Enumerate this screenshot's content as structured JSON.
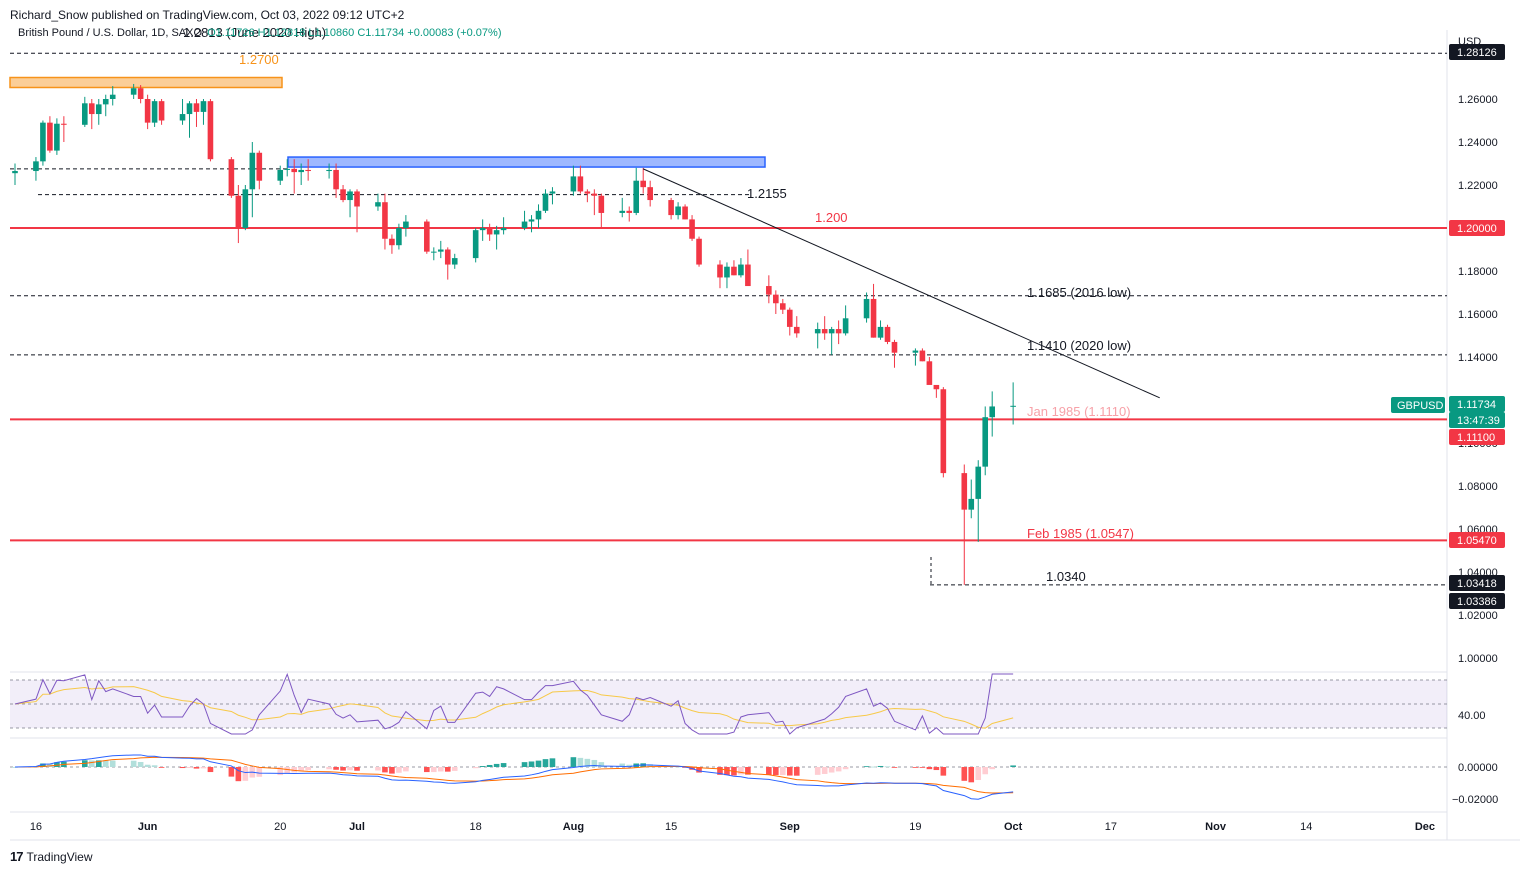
{
  "header": {
    "publisher": "Richard_Snow published on TradingView.com, Oct 03, 2022 09:12 UTC+2",
    "symbol_line": "British Pound / U.S. Dollar, 1D, SAXO",
    "quote": "O1.11726 H1.12818 L1.10860 C1.11734 +0.00083 (+0.07%)"
  },
  "branding": {
    "logo_text": "TradingView",
    "logo_mark": "17"
  },
  "chart_data": {
    "type": "candlestick",
    "currency_label": "USD",
    "y_ticks": [
      "1.26000",
      "1.24000",
      "1.22000",
      "1.20000",
      "1.18000",
      "1.16000",
      "1.14000",
      "1.12000",
      "1.10000",
      "1.08000",
      "1.06000",
      "1.04000",
      "1.02000",
      "1.00000"
    ],
    "x_ticks": [
      "16",
      "Jun",
      "20",
      "Jul",
      "18",
      "Aug",
      "15",
      "Sep",
      "19",
      "Oct",
      "17",
      "Nov",
      "14",
      "Dec"
    ],
    "price_tags": [
      {
        "text": "1.28126",
        "style": "dark"
      },
      {
        "text": "1.20000",
        "style": "red"
      },
      {
        "text": "1.11734",
        "style": "green"
      },
      {
        "text": "13:47:39",
        "style": "green"
      },
      {
        "text": "1.11100",
        "style": "red"
      },
      {
        "text": "1.05470",
        "style": "red"
      },
      {
        "text": "1.03418",
        "style": "dark"
      },
      {
        "text": "1.03386",
        "style": "dark"
      }
    ],
    "symbol_badge": "GBPUSD",
    "annotations": [
      {
        "text": "1.2813 (June 2020 High)",
        "color": "#131722"
      },
      {
        "text": "1.2700",
        "color": "#f7931a"
      },
      {
        "text": "1.2155",
        "color": "#131722"
      },
      {
        "text": "1.200",
        "color": "#f23645"
      },
      {
        "text": "1.1685 (2016 low)",
        "color": "#131722"
      },
      {
        "text": "1.1410 (2020 low)",
        "color": "#131722"
      },
      {
        "text": "Jan 1985 (1.1110)",
        "color": "#f7a1a8"
      },
      {
        "text": "Feb 1985 (1.0547)",
        "color": "#f23645"
      },
      {
        "text": "1.0340",
        "color": "#131722"
      }
    ],
    "levels": [
      {
        "value": 1.2813,
        "style": "dashed",
        "color": "#131722"
      },
      {
        "value": 1.2155,
        "style": "dashed",
        "color": "#131722"
      },
      {
        "value": 1.2,
        "style": "solid",
        "color": "#f23645"
      },
      {
        "value": 1.1685,
        "style": "dashed",
        "color": "#131722"
      },
      {
        "value": 1.141,
        "style": "dashed",
        "color": "#131722"
      },
      {
        "value": 1.111,
        "style": "solid",
        "color": "#f23645"
      },
      {
        "value": 1.0547,
        "style": "solid",
        "color": "#f23645"
      },
      {
        "value": 1.034,
        "style": "dashed",
        "color": "#131722"
      }
    ],
    "zones": [
      {
        "from": 1.2675,
        "to": 1.27,
        "color": "#f7931a"
      },
      {
        "from": 1.229,
        "to": 1.233,
        "color": "#2962ff"
      }
    ],
    "trendline": {
      "from": {
        "date": "2022-08-11",
        "value": 1.2275
      },
      "to": {
        "date": "2022-10-24",
        "value": 1.121
      }
    },
    "rsi": {
      "level_label": "40.00"
    },
    "macd": {
      "tick_labels": [
        "0.00000",
        "−0.02000"
      ]
    },
    "candles": [
      {
        "date": "2022-05-13",
        "o": 1.2255,
        "h": 1.23,
        "l": 1.22,
        "c": 1.2265
      },
      {
        "date": "2022-05-16",
        "o": 1.2265,
        "h": 1.233,
        "l": 1.222,
        "c": 1.231
      },
      {
        "date": "2022-05-17",
        "o": 1.231,
        "h": 1.25,
        "l": 1.229,
        "c": 1.249
      },
      {
        "date": "2022-05-18",
        "o": 1.249,
        "h": 1.252,
        "l": 1.235,
        "c": 1.236
      },
      {
        "date": "2022-05-19",
        "o": 1.236,
        "h": 1.251,
        "l": 1.234,
        "c": 1.2485
      },
      {
        "date": "2022-05-20",
        "o": 1.2485,
        "h": 1.252,
        "l": 1.24,
        "c": 1.248
      },
      {
        "date": "2022-05-23",
        "o": 1.248,
        "h": 1.261,
        "l": 1.247,
        "c": 1.258
      },
      {
        "date": "2022-05-24",
        "o": 1.258,
        "h": 1.26,
        "l": 1.246,
        "c": 1.253
      },
      {
        "date": "2022-05-25",
        "o": 1.253,
        "h": 1.26,
        "l": 1.248,
        "c": 1.2575
      },
      {
        "date": "2022-05-26",
        "o": 1.2575,
        "h": 1.262,
        "l": 1.252,
        "c": 1.26
      },
      {
        "date": "2022-05-27",
        "o": 1.26,
        "h": 1.266,
        "l": 1.257,
        "c": 1.262
      },
      {
        "date": "2022-05-30",
        "o": 1.262,
        "h": 1.267,
        "l": 1.26,
        "c": 1.265
      },
      {
        "date": "2022-05-31",
        "o": 1.265,
        "h": 1.2665,
        "l": 1.258,
        "c": 1.26
      },
      {
        "date": "2022-06-01",
        "o": 1.26,
        "h": 1.262,
        "l": 1.246,
        "c": 1.249
      },
      {
        "date": "2022-06-02",
        "o": 1.249,
        "h": 1.26,
        "l": 1.247,
        "c": 1.259
      },
      {
        "date": "2022-06-03",
        "o": 1.259,
        "h": 1.26,
        "l": 1.248,
        "c": 1.25
      },
      {
        "date": "2022-06-06",
        "o": 1.25,
        "h": 1.26,
        "l": 1.248,
        "c": 1.253
      },
      {
        "date": "2022-06-07",
        "o": 1.253,
        "h": 1.259,
        "l": 1.242,
        "c": 1.258
      },
      {
        "date": "2022-06-08",
        "o": 1.258,
        "h": 1.26,
        "l": 1.247,
        "c": 1.254
      },
      {
        "date": "2022-06-09",
        "o": 1.254,
        "h": 1.26,
        "l": 1.248,
        "c": 1.259
      },
      {
        "date": "2022-06-10",
        "o": 1.259,
        "h": 1.26,
        "l": 1.231,
        "c": 1.232
      },
      {
        "date": "2022-06-13",
        "o": 1.232,
        "h": 1.233,
        "l": 1.214,
        "c": 1.215
      },
      {
        "date": "2022-06-14",
        "o": 1.215,
        "h": 1.22,
        "l": 1.193,
        "c": 1.2
      },
      {
        "date": "2022-06-15",
        "o": 1.2,
        "h": 1.22,
        "l": 1.199,
        "c": 1.218
      },
      {
        "date": "2022-06-16",
        "o": 1.218,
        "h": 1.24,
        "l": 1.205,
        "c": 1.235
      },
      {
        "date": "2022-06-17",
        "o": 1.235,
        "h": 1.236,
        "l": 1.218,
        "c": 1.222
      },
      {
        "date": "2022-06-20",
        "o": 1.222,
        "h": 1.229,
        "l": 1.22,
        "c": 1.227
      },
      {
        "date": "2022-06-21",
        "o": 1.227,
        "h": 1.232,
        "l": 1.224,
        "c": 1.2275
      },
      {
        "date": "2022-06-22",
        "o": 1.2275,
        "h": 1.232,
        "l": 1.216,
        "c": 1.226
      },
      {
        "date": "2022-06-23",
        "o": 1.226,
        "h": 1.23,
        "l": 1.22,
        "c": 1.227
      },
      {
        "date": "2022-06-24",
        "o": 1.227,
        "h": 1.232,
        "l": 1.222,
        "c": 1.2265
      },
      {
        "date": "2022-06-27",
        "o": 1.2265,
        "h": 1.23,
        "l": 1.223,
        "c": 1.227
      },
      {
        "date": "2022-06-28",
        "o": 1.227,
        "h": 1.23,
        "l": 1.214,
        "c": 1.218
      },
      {
        "date": "2022-06-29",
        "o": 1.218,
        "h": 1.22,
        "l": 1.212,
        "c": 1.213
      },
      {
        "date": "2022-06-30",
        "o": 1.213,
        "h": 1.218,
        "l": 1.205,
        "c": 1.217
      },
      {
        "date": "2022-07-01",
        "o": 1.217,
        "h": 1.218,
        "l": 1.198,
        "c": 1.21
      },
      {
        "date": "2022-07-04",
        "o": 1.21,
        "h": 1.216,
        "l": 1.208,
        "c": 1.212
      },
      {
        "date": "2022-07-05",
        "o": 1.212,
        "h": 1.216,
        "l": 1.19,
        "c": 1.195
      },
      {
        "date": "2022-07-06",
        "o": 1.195,
        "h": 1.197,
        "l": 1.188,
        "c": 1.192
      },
      {
        "date": "2022-07-07",
        "o": 1.192,
        "h": 1.202,
        "l": 1.19,
        "c": 1.2
      },
      {
        "date": "2022-07-08",
        "o": 1.2,
        "h": 1.206,
        "l": 1.196,
        "c": 1.203
      },
      {
        "date": "2022-07-11",
        "o": 1.203,
        "h": 1.204,
        "l": 1.188,
        "c": 1.189
      },
      {
        "date": "2022-07-12",
        "o": 1.189,
        "h": 1.191,
        "l": 1.185,
        "c": 1.189
      },
      {
        "date": "2022-07-13",
        "o": 1.189,
        "h": 1.194,
        "l": 1.186,
        "c": 1.19
      },
      {
        "date": "2022-07-14",
        "o": 1.19,
        "h": 1.191,
        "l": 1.176,
        "c": 1.183
      },
      {
        "date": "2022-07-15",
        "o": 1.183,
        "h": 1.188,
        "l": 1.181,
        "c": 1.186
      },
      {
        "date": "2022-07-18",
        "o": 1.186,
        "h": 1.2,
        "l": 1.184,
        "c": 1.199
      },
      {
        "date": "2022-07-19",
        "o": 1.199,
        "h": 1.204,
        "l": 1.194,
        "c": 1.2
      },
      {
        "date": "2022-07-20",
        "o": 1.2,
        "h": 1.202,
        "l": 1.194,
        "c": 1.197
      },
      {
        "date": "2022-07-21",
        "o": 1.197,
        "h": 1.201,
        "l": 1.19,
        "c": 1.199
      },
      {
        "date": "2022-07-22",
        "o": 1.199,
        "h": 1.205,
        "l": 1.197,
        "c": 1.2
      },
      {
        "date": "2022-07-25",
        "o": 1.2,
        "h": 1.208,
        "l": 1.199,
        "c": 1.203
      },
      {
        "date": "2022-07-26",
        "o": 1.203,
        "h": 1.206,
        "l": 1.198,
        "c": 1.204
      },
      {
        "date": "2022-07-27",
        "o": 1.204,
        "h": 1.211,
        "l": 1.2,
        "c": 1.208
      },
      {
        "date": "2022-07-28",
        "o": 1.208,
        "h": 1.218,
        "l": 1.207,
        "c": 1.216
      },
      {
        "date": "2022-07-29",
        "o": 1.216,
        "h": 1.219,
        "l": 1.211,
        "c": 1.217
      },
      {
        "date": "2022-08-01",
        "o": 1.217,
        "h": 1.229,
        "l": 1.215,
        "c": 1.224
      },
      {
        "date": "2022-08-02",
        "o": 1.224,
        "h": 1.229,
        "l": 1.216,
        "c": 1.217
      },
      {
        "date": "2022-08-03",
        "o": 1.217,
        "h": 1.218,
        "l": 1.212,
        "c": 1.216
      },
      {
        "date": "2022-08-04",
        "o": 1.216,
        "h": 1.218,
        "l": 1.206,
        "c": 1.215
      },
      {
        "date": "2022-08-05",
        "o": 1.215,
        "h": 1.216,
        "l": 1.2,
        "c": 1.207
      },
      {
        "date": "2022-08-08",
        "o": 1.207,
        "h": 1.214,
        "l": 1.205,
        "c": 1.208
      },
      {
        "date": "2022-08-09",
        "o": 1.208,
        "h": 1.21,
        "l": 1.203,
        "c": 1.207
      },
      {
        "date": "2022-08-10",
        "o": 1.207,
        "h": 1.228,
        "l": 1.206,
        "c": 1.222
      },
      {
        "date": "2022-08-11",
        "o": 1.222,
        "h": 1.228,
        "l": 1.216,
        "c": 1.219
      },
      {
        "date": "2022-08-12",
        "o": 1.219,
        "h": 1.222,
        "l": 1.21,
        "c": 1.213
      },
      {
        "date": "2022-08-15",
        "o": 1.213,
        "h": 1.214,
        "l": 1.204,
        "c": 1.206
      },
      {
        "date": "2022-08-16",
        "o": 1.206,
        "h": 1.212,
        "l": 1.204,
        "c": 1.21
      },
      {
        "date": "2022-08-17",
        "o": 1.21,
        "h": 1.211,
        "l": 1.204,
        "c": 1.204
      },
      {
        "date": "2022-08-18",
        "o": 1.204,
        "h": 1.206,
        "l": 1.194,
        "c": 1.195
      },
      {
        "date": "2022-08-19",
        "o": 1.195,
        "h": 1.196,
        "l": 1.182,
        "c": 1.183
      },
      {
        "date": "2022-08-22",
        "o": 1.183,
        "h": 1.185,
        "l": 1.172,
        "c": 1.177
      },
      {
        "date": "2022-08-23",
        "o": 1.177,
        "h": 1.184,
        "l": 1.172,
        "c": 1.182
      },
      {
        "date": "2022-08-24",
        "o": 1.182,
        "h": 1.185,
        "l": 1.178,
        "c": 1.178
      },
      {
        "date": "2022-08-25",
        "o": 1.178,
        "h": 1.186,
        "l": 1.177,
        "c": 1.183
      },
      {
        "date": "2022-08-26",
        "o": 1.183,
        "h": 1.19,
        "l": 1.174,
        "c": 1.173
      },
      {
        "date": "2022-08-29",
        "o": 1.173,
        "h": 1.178,
        "l": 1.165,
        "c": 1.169
      },
      {
        "date": "2022-08-30",
        "o": 1.169,
        "h": 1.171,
        "l": 1.16,
        "c": 1.165
      },
      {
        "date": "2022-08-31",
        "o": 1.165,
        "h": 1.167,
        "l": 1.16,
        "c": 1.162
      },
      {
        "date": "2022-09-01",
        "o": 1.162,
        "h": 1.163,
        "l": 1.15,
        "c": 1.154
      },
      {
        "date": "2022-09-02",
        "o": 1.154,
        "h": 1.159,
        "l": 1.149,
        "c": 1.151
      },
      {
        "date": "2022-09-05",
        "o": 1.151,
        "h": 1.156,
        "l": 1.144,
        "c": 1.153
      },
      {
        "date": "2022-09-06",
        "o": 1.153,
        "h": 1.159,
        "l": 1.148,
        "c": 1.151
      },
      {
        "date": "2022-09-07",
        "o": 1.151,
        "h": 1.154,
        "l": 1.141,
        "c": 1.153
      },
      {
        "date": "2022-09-08",
        "o": 1.153,
        "h": 1.157,
        "l": 1.146,
        "c": 1.151
      },
      {
        "date": "2022-09-09",
        "o": 1.151,
        "h": 1.164,
        "l": 1.15,
        "c": 1.158
      },
      {
        "date": "2022-09-12",
        "o": 1.158,
        "h": 1.17,
        "l": 1.156,
        "c": 1.167
      },
      {
        "date": "2022-09-13",
        "o": 1.167,
        "h": 1.174,
        "l": 1.149,
        "c": 1.149
      },
      {
        "date": "2022-09-14",
        "o": 1.149,
        "h": 1.157,
        "l": 1.148,
        "c": 1.154
      },
      {
        "date": "2022-09-15",
        "o": 1.154,
        "h": 1.155,
        "l": 1.146,
        "c": 1.147
      },
      {
        "date": "2022-09-16",
        "o": 1.147,
        "h": 1.148,
        "l": 1.135,
        "c": 1.142
      },
      {
        "date": "2022-09-19",
        "o": 1.142,
        "h": 1.144,
        "l": 1.136,
        "c": 1.143
      },
      {
        "date": "2022-09-20",
        "o": 1.143,
        "h": 1.144,
        "l": 1.138,
        "c": 1.138
      },
      {
        "date": "2022-09-21",
        "o": 1.138,
        "h": 1.14,
        "l": 1.129,
        "c": 1.127
      },
      {
        "date": "2022-09-22",
        "o": 1.127,
        "h": 1.126,
        "l": 1.121,
        "c": 1.125
      },
      {
        "date": "2022-09-23",
        "o": 1.125,
        "h": 1.126,
        "l": 1.084,
        "c": 1.086
      },
      {
        "date": "2022-09-26",
        "o": 1.086,
        "h": 1.09,
        "l": 1.034,
        "c": 1.069
      },
      {
        "date": "2022-09-27",
        "o": 1.069,
        "h": 1.083,
        "l": 1.065,
        "c": 1.074
      },
      {
        "date": "2022-09-28",
        "o": 1.074,
        "h": 1.092,
        "l": 1.054,
        "c": 1.089
      },
      {
        "date": "2022-09-29",
        "o": 1.089,
        "h": 1.117,
        "l": 1.085,
        "c": 1.112
      },
      {
        "date": "2022-09-30",
        "o": 1.112,
        "h": 1.124,
        "l": 1.103,
        "c": 1.117
      },
      {
        "date": "2022-10-03",
        "o": 1.1173,
        "h": 1.1282,
        "l": 1.1086,
        "c": 1.1173
      }
    ]
  }
}
